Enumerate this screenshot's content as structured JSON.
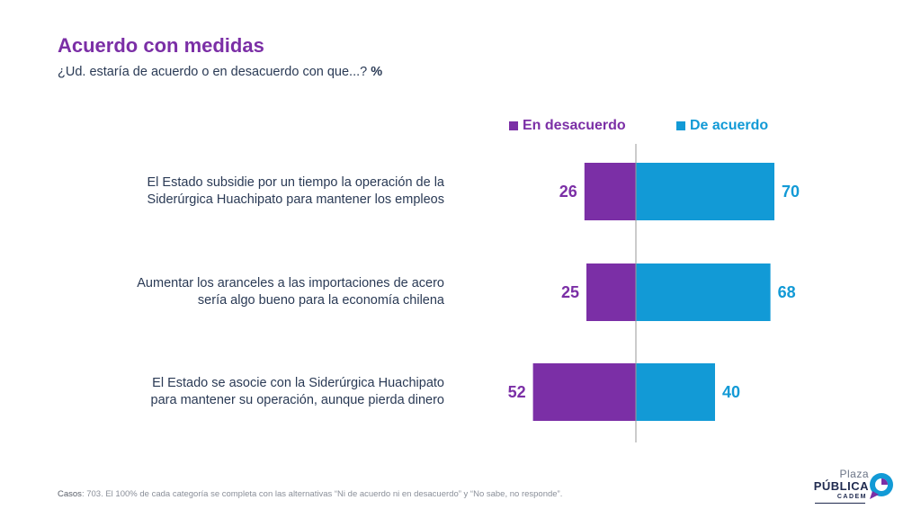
{
  "header": {
    "title": "Acuerdo con medidas",
    "subtitle": "¿Ud. estaría de acuerdo o en desacuerdo con que...?",
    "unit": "%"
  },
  "legend": {
    "disagree": "En desacuerdo",
    "agree": "De acuerdo"
  },
  "colors": {
    "disagree": "#7b2fa6",
    "agree": "#129ad6",
    "axis": "#9a9a9a"
  },
  "chart_data": {
    "type": "bar",
    "orientation": "horizontal-diverging",
    "categories": [
      "El Estado subsidie por un tiempo la operación de la Siderúrgica Huachipato para mantener los empleos",
      "Aumentar los aranceles a las importaciones de acero sería algo bueno para la economía chilena",
      "El Estado se asocie con la Siderúrgica Huachipato para mantener su operación, aunque pierda dinero"
    ],
    "category_lines": [
      [
        "El Estado subsidie por un tiempo la operación de la",
        "Siderúrgica Huachipato para mantener los empleos"
      ],
      [
        "Aumentar los aranceles a las importaciones de acero",
        "sería algo bueno para la economía chilena"
      ],
      [
        "El Estado se asocie con la Siderúrgica Huachipato",
        "para mantener su operación, aunque pierda dinero"
      ]
    ],
    "series": [
      {
        "name": "En desacuerdo",
        "values": [
          26,
          25,
          52
        ]
      },
      {
        "name": "De acuerdo",
        "values": [
          70,
          68,
          40
        ]
      }
    ],
    "title": "Acuerdo con medidas",
    "xlabel": "",
    "ylabel": "",
    "xlim": [
      -100,
      100
    ],
    "grid": false,
    "legend_position": "top-right"
  },
  "footer": {
    "label": "Casos",
    "text": ": 703. El 100% de cada categoría se completa con las alternativas “Ni de acuerdo ni en desacuerdo” y “No sabe, no responde”."
  },
  "logo": {
    "line1": "Plaza",
    "line2": "PÚBLICA",
    "line3": "CADEM"
  }
}
